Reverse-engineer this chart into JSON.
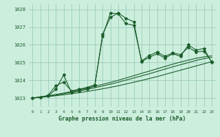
{
  "title": "Graphe pression niveau de la mer (hPa)",
  "background_color": "#cceedd",
  "grid_color": "#99ccbb",
  "line_color": "#1a5c2a",
  "xlim": [
    -0.5,
    23.5
  ],
  "ylim": [
    1022.5,
    1028.3
  ],
  "yticks": [
    1023,
    1024,
    1025,
    1026,
    1027,
    1028
  ],
  "xticks": [
    0,
    1,
    2,
    3,
    4,
    5,
    6,
    7,
    8,
    9,
    10,
    11,
    12,
    13,
    14,
    15,
    16,
    17,
    18,
    19,
    20,
    21,
    22,
    23
  ],
  "series1": [
    1023.0,
    1023.05,
    1023.1,
    1023.5,
    1024.3,
    1023.3,
    1023.4,
    1023.5,
    1023.7,
    1026.6,
    1027.55,
    1027.8,
    1027.5,
    1027.3,
    1025.05,
    1025.3,
    1025.5,
    1025.25,
    1025.5,
    1025.35,
    1026.0,
    1025.7,
    1025.8,
    1025.0
  ],
  "series2": [
    1023.0,
    1023.05,
    1023.15,
    1023.7,
    1023.9,
    1023.4,
    1023.5,
    1023.6,
    1023.75,
    1026.5,
    1027.8,
    1027.75,
    1027.2,
    1027.1,
    1025.1,
    1025.4,
    1025.6,
    1025.35,
    1025.55,
    1025.45,
    1025.85,
    1025.6,
    1025.65,
    1025.05
  ],
  "series_smooth1": [
    1023.0,
    1023.04,
    1023.08,
    1023.13,
    1023.18,
    1023.24,
    1023.3,
    1023.37,
    1023.44,
    1023.52,
    1023.6,
    1023.69,
    1023.79,
    1023.89,
    1023.99,
    1024.1,
    1024.21,
    1024.33,
    1024.45,
    1024.57,
    1024.69,
    1024.81,
    1024.93,
    1025.05
  ],
  "series_smooth2": [
    1023.0,
    1023.05,
    1023.1,
    1023.17,
    1023.24,
    1023.32,
    1023.4,
    1023.49,
    1023.58,
    1023.68,
    1023.78,
    1023.89,
    1024.01,
    1024.13,
    1024.25,
    1024.37,
    1024.5,
    1024.63,
    1024.76,
    1024.88,
    1025.0,
    1025.12,
    1025.22,
    1025.3
  ],
  "series_smooth3": [
    1023.0,
    1023.06,
    1023.12,
    1023.2,
    1023.28,
    1023.37,
    1023.46,
    1023.56,
    1023.66,
    1023.77,
    1023.88,
    1024.0,
    1024.13,
    1024.26,
    1024.39,
    1024.52,
    1024.65,
    1024.78,
    1024.91,
    1025.03,
    1025.14,
    1025.24,
    1025.32,
    1025.38
  ]
}
